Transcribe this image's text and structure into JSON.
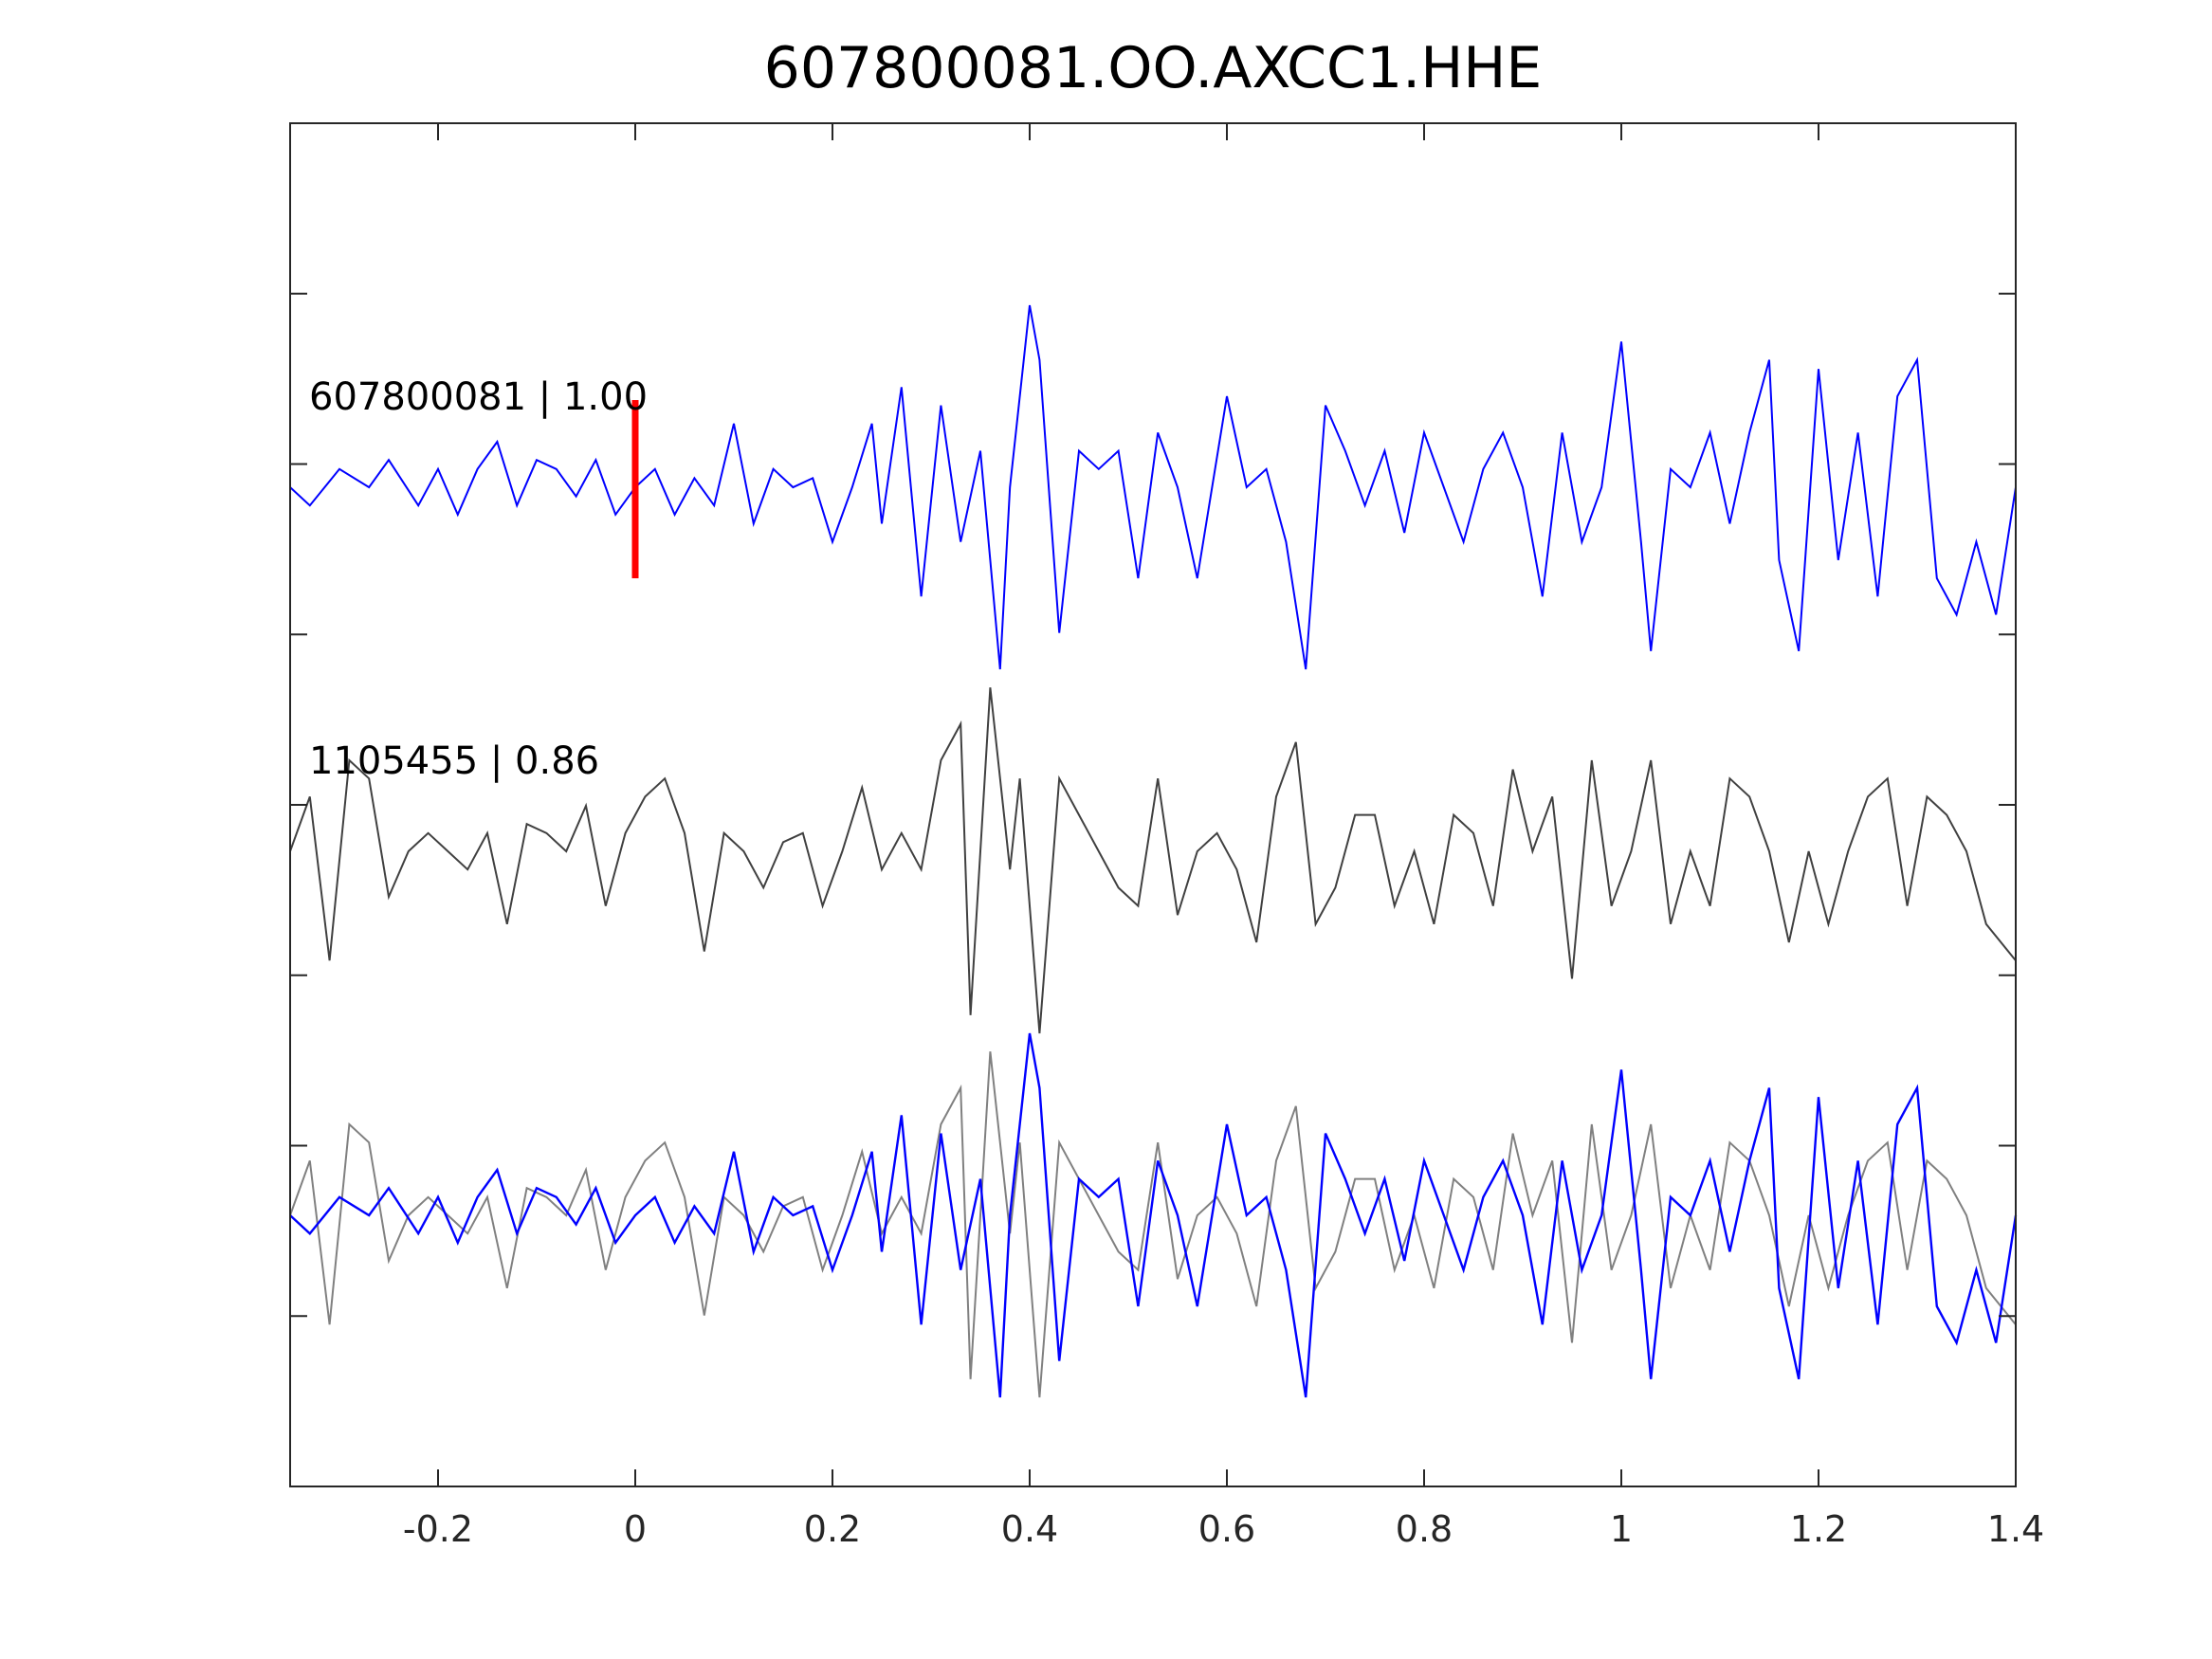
{
  "chart_data": {
    "type": "line",
    "title": "607800081.OO.AXCC1.HHE",
    "xlabel": "",
    "ylabel": "",
    "xlim": [
      -0.35,
      1.4
    ],
    "x_ticks": [
      -0.2,
      0,
      0.2,
      0.4,
      0.6,
      0.8,
      1,
      1.2,
      1.4
    ],
    "x_tick_labels": [
      "-0.2",
      "0",
      "0.2",
      "0.4",
      "0.6",
      "0.8",
      "1",
      "1.2",
      "1.4"
    ],
    "y_tick_count": 7,
    "grid": false,
    "pick_marker": {
      "x": 0,
      "color": "#ff0000",
      "trace": 0
    },
    "series": [
      {
        "name": "607800081 | 1.00",
        "label": "607800081 | 1.00",
        "color": "#0000ff",
        "offset": 2,
        "x": [
          -0.35,
          -0.33,
          -0.3,
          -0.27,
          -0.25,
          -0.22,
          -0.2,
          -0.18,
          -0.16,
          -0.14,
          -0.12,
          -0.1,
          -0.08,
          -0.06,
          -0.04,
          -0.02,
          0,
          0.02,
          0.04,
          0.06,
          0.08,
          0.1,
          0.12,
          0.14,
          0.16,
          0.18,
          0.2,
          0.22,
          0.24,
          0.25,
          0.27,
          0.29,
          0.31,
          0.33,
          0.35,
          0.37,
          0.38,
          0.4,
          0.41,
          0.43,
          0.45,
          0.47,
          0.49,
          0.51,
          0.53,
          0.55,
          0.57,
          0.6,
          0.62,
          0.64,
          0.66,
          0.68,
          0.7,
          0.72,
          0.74,
          0.76,
          0.78,
          0.8,
          0.82,
          0.84,
          0.86,
          0.88,
          0.9,
          0.92,
          0.94,
          0.96,
          0.98,
          1.0,
          1.02,
          1.03,
          1.05,
          1.07,
          1.09,
          1.11,
          1.13,
          1.15,
          1.16,
          1.18,
          1.2,
          1.22,
          1.24,
          1.26,
          1.28,
          1.3,
          1.32,
          1.34,
          1.36,
          1.38,
          1.4
        ],
        "values": [
          0.0,
          -0.1,
          0.1,
          0.0,
          0.15,
          -0.1,
          0.1,
          -0.15,
          0.1,
          0.25,
          -0.1,
          0.15,
          0.1,
          -0.05,
          0.15,
          -0.15,
          0.0,
          0.1,
          -0.15,
          0.05,
          -0.1,
          0.35,
          -0.2,
          0.1,
          0.0,
          0.05,
          -0.3,
          0.0,
          0.35,
          -0.2,
          0.55,
          -0.6,
          0.45,
          -0.3,
          0.2,
          -1.0,
          0.0,
          1.0,
          0.7,
          -0.8,
          0.2,
          0.1,
          0.2,
          -0.5,
          0.3,
          0.0,
          -0.5,
          0.5,
          0.0,
          0.1,
          -0.3,
          -1.0,
          0.45,
          0.2,
          -0.1,
          0.2,
          -0.25,
          0.3,
          0.0,
          -0.3,
          0.1,
          0.3,
          0.0,
          -0.6,
          0.3,
          -0.3,
          0.0,
          0.8,
          -0.3,
          -0.9,
          0.1,
          0.0,
          0.3,
          -0.2,
          0.3,
          0.7,
          -0.4,
          -0.9,
          0.65,
          -0.4,
          0.3,
          -0.6,
          0.5,
          0.7,
          -0.5,
          -0.7,
          -0.3,
          -0.7,
          0.0
        ]
      },
      {
        "name": "1105455 | 0.86",
        "label": "1105455 | 0.86",
        "color": "#404040",
        "offset": 0,
        "x": [
          -0.35,
          -0.33,
          -0.31,
          -0.29,
          -0.27,
          -0.25,
          -0.23,
          -0.21,
          -0.19,
          -0.17,
          -0.15,
          -0.13,
          -0.11,
          -0.09,
          -0.07,
          -0.05,
          -0.03,
          -0.01,
          0.01,
          0.03,
          0.05,
          0.07,
          0.09,
          0.11,
          0.13,
          0.15,
          0.17,
          0.19,
          0.21,
          0.23,
          0.25,
          0.27,
          0.29,
          0.31,
          0.33,
          0.34,
          0.36,
          0.38,
          0.39,
          0.41,
          0.43,
          0.45,
          0.47,
          0.49,
          0.51,
          0.53,
          0.55,
          0.57,
          0.59,
          0.61,
          0.63,
          0.65,
          0.67,
          0.69,
          0.71,
          0.73,
          0.75,
          0.77,
          0.79,
          0.81,
          0.83,
          0.85,
          0.87,
          0.89,
          0.91,
          0.93,
          0.95,
          0.97,
          0.99,
          1.01,
          1.03,
          1.05,
          1.07,
          1.09,
          1.11,
          1.13,
          1.15,
          1.17,
          1.19,
          1.21,
          1.23,
          1.25,
          1.27,
          1.29,
          1.31,
          1.33,
          1.35,
          1.37,
          1.4
        ],
        "values": [
          0.0,
          0.3,
          -0.6,
          0.5,
          0.4,
          -0.25,
          0.0,
          0.1,
          0.0,
          -0.1,
          0.1,
          -0.4,
          0.15,
          0.1,
          0.0,
          0.25,
          -0.3,
          0.1,
          0.3,
          0.4,
          0.1,
          -0.55,
          0.1,
          0.0,
          -0.2,
          0.05,
          0.1,
          -0.3,
          0.0,
          0.35,
          -0.1,
          0.1,
          -0.1,
          0.5,
          0.7,
          -0.9,
          0.9,
          -0.1,
          0.4,
          -1.0,
          0.4,
          0.2,
          0.0,
          -0.2,
          -0.3,
          0.4,
          -0.35,
          0.0,
          0.1,
          -0.1,
          -0.5,
          0.3,
          0.6,
          -0.4,
          -0.2,
          0.2,
          0.2,
          -0.3,
          0.0,
          -0.4,
          0.2,
          0.1,
          -0.3,
          0.45,
          0.0,
          0.3,
          -0.7,
          0.5,
          -0.3,
          0.0,
          0.5,
          -0.4,
          0.0,
          -0.3,
          0.4,
          0.3,
          0.0,
          -0.5,
          0.0,
          -0.4,
          0.0,
          0.3,
          0.4,
          -0.3,
          0.3,
          0.2,
          0.0,
          -0.4,
          -0.6
        ]
      }
    ]
  }
}
